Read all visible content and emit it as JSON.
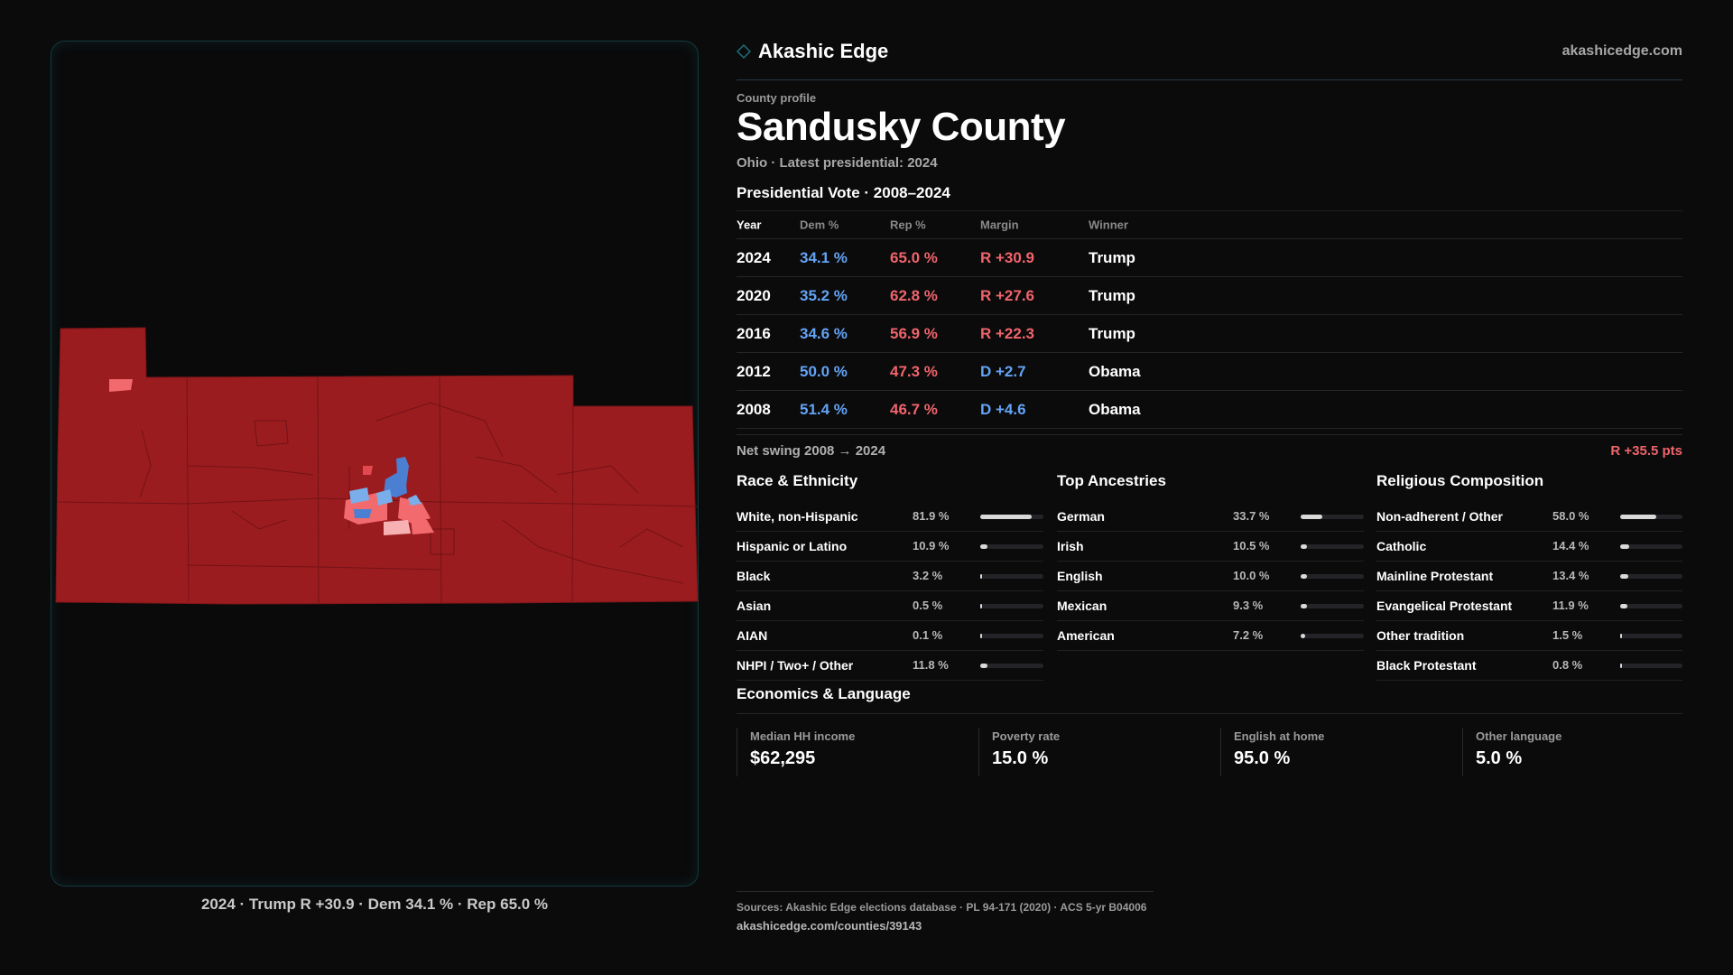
{
  "map": {
    "caption": "2024 · Trump R +30.9 · Dem 34.1 % · Rep 65.0 %",
    "county_color": "#9b1c1f",
    "light_red": "#f26a6d",
    "blue": "#4a7fd1",
    "light_blue": "#7aaeea"
  },
  "header": {
    "brand": "Akashic Edge",
    "brand_icon": "diamond-icon",
    "site": "akashicedge.com"
  },
  "profile": {
    "kicker": "County profile",
    "title": "Sandusky County",
    "subtitle": "Ohio · Latest presidential: 2024"
  },
  "vote": {
    "title": "Presidential Vote · 2008–2024",
    "columns": [
      "Year",
      "Dem %",
      "Rep %",
      "Margin",
      "Winner"
    ],
    "rows": [
      {
        "year": "2024",
        "dem": "34.1 %",
        "rep": "65.0 %",
        "margin": "R +30.9",
        "party": "R",
        "winner": "Trump"
      },
      {
        "year": "2020",
        "dem": "35.2 %",
        "rep": "62.8 %",
        "margin": "R +27.6",
        "party": "R",
        "winner": "Trump"
      },
      {
        "year": "2016",
        "dem": "34.6 %",
        "rep": "56.9 %",
        "margin": "R +22.3",
        "party": "R",
        "winner": "Trump"
      },
      {
        "year": "2012",
        "dem": "50.0 %",
        "rep": "47.3 %",
        "margin": "D +2.7",
        "party": "D",
        "winner": "Obama"
      },
      {
        "year": "2008",
        "dem": "51.4 %",
        "rep": "46.7 %",
        "margin": "D +4.6",
        "party": "D",
        "winner": "Obama"
      }
    ],
    "swing_label": "Net swing 2008 → 2024",
    "swing_value": "R +35.5 pts"
  },
  "race": {
    "title": "Race & Ethnicity",
    "rows": [
      {
        "label": "White, non-Hispanic",
        "value": "81.9 %",
        "pct": 81.9
      },
      {
        "label": "Hispanic or Latino",
        "value": "10.9 %",
        "pct": 10.9
      },
      {
        "label": "Black",
        "value": "3.2 %",
        "pct": 3.2
      },
      {
        "label": "Asian",
        "value": "0.5 %",
        "pct": 0.5
      },
      {
        "label": "AIAN",
        "value": "0.1 %",
        "pct": 0.1
      },
      {
        "label": "NHPI / Two+ / Other",
        "value": "11.8 %",
        "pct": 11.8
      }
    ]
  },
  "ancestry": {
    "title": "Top Ancestries",
    "rows": [
      {
        "label": "German",
        "value": "33.7 %",
        "pct": 33.7
      },
      {
        "label": "Irish",
        "value": "10.5 %",
        "pct": 10.5
      },
      {
        "label": "English",
        "value": "10.0 %",
        "pct": 10.0
      },
      {
        "label": "Mexican",
        "value": "9.3 %",
        "pct": 9.3
      },
      {
        "label": "American",
        "value": "7.2 %",
        "pct": 7.2
      }
    ]
  },
  "religion": {
    "title": "Religious Composition",
    "rows": [
      {
        "label": "Non-adherent / Other",
        "value": "58.0 %",
        "pct": 58.0
      },
      {
        "label": "Catholic",
        "value": "14.4 %",
        "pct": 14.4
      },
      {
        "label": "Mainline Protestant",
        "value": "13.4 %",
        "pct": 13.4
      },
      {
        "label": "Evangelical Protestant",
        "value": "11.9 %",
        "pct": 11.9
      },
      {
        "label": "Other tradition",
        "value": "1.5 %",
        "pct": 1.5
      },
      {
        "label": "Black Protestant",
        "value": "0.8 %",
        "pct": 0.8
      }
    ]
  },
  "econ": {
    "title": "Economics & Language",
    "cells": [
      {
        "label": "Median HH income",
        "value": "$62,295"
      },
      {
        "label": "Poverty rate",
        "value": "15.0 %"
      },
      {
        "label": "English at home",
        "value": "95.0 %"
      },
      {
        "label": "Other language",
        "value": "5.0 %"
      }
    ]
  },
  "sources": {
    "line1": "Sources: Akashic Edge elections database · PL 94-171 (2020) · ACS 5-yr B04006",
    "line2": "akashicedge.com/counties/39143"
  },
  "colors": {
    "dem": "#63a3f5",
    "rep": "#f0646b",
    "accent": "#1f6f78"
  }
}
